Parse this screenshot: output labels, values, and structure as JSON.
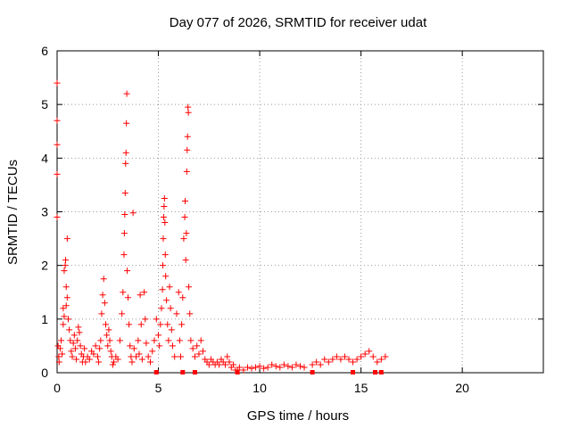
{
  "chart_data": {
    "type": "scatter",
    "title": "Day 077 of 2026, SRMTID for receiver udat",
    "xlabel": "GPS time / hours",
    "ylabel": "SRMTID / TECUs",
    "xlim": [
      0,
      24
    ],
    "ylim": [
      0,
      6
    ],
    "xticks": [
      0,
      5,
      10,
      15,
      20
    ],
    "yticks": [
      0,
      1,
      2,
      3,
      4,
      5,
      6
    ],
    "grid": true,
    "marker": "+",
    "series": [
      {
        "name": "SRMTID",
        "color": "#ff0000",
        "points": [
          [
            0.0,
            5.4
          ],
          [
            0.0,
            4.7
          ],
          [
            0.0,
            4.25
          ],
          [
            0.0,
            3.7
          ],
          [
            0.0,
            2.9
          ],
          [
            0.05,
            0.5
          ],
          [
            0.08,
            0.3
          ],
          [
            0.1,
            0.2
          ],
          [
            0.15,
            0.45
          ],
          [
            0.2,
            0.6
          ],
          [
            0.25,
            0.35
          ],
          [
            0.3,
            0.9
          ],
          [
            0.35,
            1.9
          ],
          [
            0.4,
            2.0
          ],
          [
            0.42,
            2.1
          ],
          [
            0.45,
            1.6
          ],
          [
            0.5,
            1.4
          ],
          [
            0.5,
            2.5
          ],
          [
            0.3,
            1.2
          ],
          [
            0.35,
            1.05
          ],
          [
            0.45,
            1.25
          ],
          [
            0.55,
            1.0
          ],
          [
            0.6,
            0.8
          ],
          [
            0.65,
            0.6
          ],
          [
            0.7,
            0.4
          ],
          [
            0.75,
            0.3
          ],
          [
            0.8,
            0.55
          ],
          [
            0.85,
            0.7
          ],
          [
            0.9,
            0.45
          ],
          [
            0.95,
            0.25
          ],
          [
            1.0,
            0.6
          ],
          [
            1.05,
            0.85
          ],
          [
            1.1,
            0.75
          ],
          [
            1.15,
            0.5
          ],
          [
            1.2,
            0.35
          ],
          [
            1.25,
            0.2
          ],
          [
            1.3,
            0.3
          ],
          [
            1.35,
            0.45
          ],
          [
            1.4,
            0.2
          ],
          [
            1.5,
            0.3
          ],
          [
            1.6,
            0.25
          ],
          [
            1.7,
            0.4
          ],
          [
            1.8,
            0.35
          ],
          [
            1.9,
            0.5
          ],
          [
            2.0,
            0.3
          ],
          [
            2.05,
            0.2
          ],
          [
            2.1,
            0.45
          ],
          [
            2.15,
            0.6
          ],
          [
            2.2,
            1.1
          ],
          [
            2.25,
            1.45
          ],
          [
            2.3,
            1.75
          ],
          [
            2.35,
            1.3
          ],
          [
            2.4,
            0.9
          ],
          [
            2.45,
            0.7
          ],
          [
            2.5,
            0.5
          ],
          [
            2.55,
            0.8
          ],
          [
            2.6,
            0.6
          ],
          [
            2.65,
            0.4
          ],
          [
            2.7,
            0.3
          ],
          [
            2.75,
            0.15
          ],
          [
            2.8,
            0.2
          ],
          [
            2.9,
            0.3
          ],
          [
            3.0,
            0.25
          ],
          [
            3.1,
            0.6
          ],
          [
            3.2,
            1.1
          ],
          [
            3.25,
            1.5
          ],
          [
            3.3,
            2.2
          ],
          [
            3.32,
            2.6
          ],
          [
            3.34,
            2.95
          ],
          [
            3.36,
            3.35
          ],
          [
            3.38,
            3.9
          ],
          [
            3.4,
            4.1
          ],
          [
            3.42,
            4.65
          ],
          [
            3.44,
            5.2
          ],
          [
            3.46,
            1.9
          ],
          [
            3.5,
            1.4
          ],
          [
            3.55,
            0.9
          ],
          [
            3.6,
            0.5
          ],
          [
            3.65,
            0.3
          ],
          [
            3.7,
            0.2
          ],
          [
            3.75,
            2.98
          ],
          [
            3.8,
            0.45
          ],
          [
            3.9,
            0.3
          ],
          [
            4.0,
            0.6
          ],
          [
            4.05,
            0.35
          ],
          [
            4.1,
            1.45
          ],
          [
            4.15,
            0.9
          ],
          [
            4.2,
            0.25
          ],
          [
            4.3,
            1.5
          ],
          [
            4.35,
            1.0
          ],
          [
            4.4,
            0.55
          ],
          [
            4.5,
            0.3
          ],
          [
            4.6,
            0.2
          ],
          [
            4.7,
            0.4
          ],
          [
            4.8,
            0.6
          ],
          [
            4.9,
            1.0
          ],
          [
            5.0,
            0.7
          ],
          [
            5.05,
            0.5
          ],
          [
            5.1,
            0.9
          ],
          [
            5.15,
            1.2
          ],
          [
            5.2,
            1.55
          ],
          [
            5.22,
            2.0
          ],
          [
            5.24,
            2.5
          ],
          [
            5.26,
            2.9
          ],
          [
            5.28,
            3.1
          ],
          [
            5.3,
            3.25
          ],
          [
            5.32,
            2.8
          ],
          [
            5.34,
            2.2
          ],
          [
            5.36,
            1.8
          ],
          [
            5.4,
            1.35
          ],
          [
            5.45,
            0.9
          ],
          [
            5.5,
            0.6
          ],
          [
            5.55,
            1.6
          ],
          [
            5.6,
            1.2
          ],
          [
            5.65,
            0.8
          ],
          [
            5.7,
            0.5
          ],
          [
            5.8,
            0.3
          ],
          [
            5.9,
            1.1
          ],
          [
            6.0,
            1.5
          ],
          [
            6.05,
            0.6
          ],
          [
            6.1,
            0.3
          ],
          [
            6.15,
            0.9
          ],
          [
            6.2,
            1.4
          ],
          [
            6.25,
            2.5
          ],
          [
            6.3,
            2.9
          ],
          [
            6.32,
            3.2
          ],
          [
            6.35,
            2.1
          ],
          [
            6.38,
            2.6
          ],
          [
            6.4,
            3.75
          ],
          [
            6.42,
            4.15
          ],
          [
            6.44,
            4.4
          ],
          [
            6.46,
            4.95
          ],
          [
            6.48,
            4.85
          ],
          [
            6.5,
            1.6
          ],
          [
            6.55,
            1.1
          ],
          [
            6.6,
            0.6
          ],
          [
            6.7,
            0.45
          ],
          [
            6.8,
            0.3
          ],
          [
            6.9,
            0.5
          ],
          [
            7.0,
            0.35
          ],
          [
            7.1,
            0.6
          ],
          [
            7.2,
            0.4
          ],
          [
            7.3,
            0.25
          ],
          [
            7.4,
            0.2
          ],
          [
            7.5,
            0.15
          ],
          [
            7.6,
            0.25
          ],
          [
            7.7,
            0.2
          ],
          [
            7.8,
            0.15
          ],
          [
            7.9,
            0.2
          ],
          [
            8.0,
            0.15
          ],
          [
            8.1,
            0.25
          ],
          [
            8.2,
            0.2
          ],
          [
            8.3,
            0.15
          ],
          [
            8.4,
            0.3
          ],
          [
            8.5,
            0.2
          ],
          [
            8.6,
            0.1
          ],
          [
            8.7,
            0.15
          ],
          [
            8.8,
            0.05
          ],
          [
            8.9,
            0.05
          ],
          [
            9.0,
            0.1
          ],
          [
            9.2,
            0.05
          ],
          [
            9.4,
            0.1
          ],
          [
            9.6,
            0.08
          ],
          [
            9.8,
            0.1
          ],
          [
            10.0,
            0.12
          ],
          [
            10.2,
            0.08
          ],
          [
            10.4,
            0.1
          ],
          [
            10.6,
            0.15
          ],
          [
            10.8,
            0.12
          ],
          [
            11.0,
            0.1
          ],
          [
            11.2,
            0.15
          ],
          [
            11.4,
            0.12
          ],
          [
            11.6,
            0.1
          ],
          [
            11.8,
            0.15
          ],
          [
            12.0,
            0.12
          ],
          [
            12.2,
            0.1
          ],
          [
            12.6,
            0.15
          ],
          [
            12.8,
            0.2
          ],
          [
            13.0,
            0.15
          ],
          [
            13.2,
            0.25
          ],
          [
            13.4,
            0.2
          ],
          [
            13.6,
            0.25
          ],
          [
            13.8,
            0.3
          ],
          [
            14.0,
            0.25
          ],
          [
            14.2,
            0.3
          ],
          [
            14.4,
            0.25
          ],
          [
            14.6,
            0.2
          ],
          [
            14.8,
            0.25
          ],
          [
            15.0,
            0.3
          ],
          [
            15.2,
            0.35
          ],
          [
            15.4,
            0.4
          ],
          [
            15.6,
            0.3
          ],
          [
            15.8,
            0.2
          ],
          [
            16.0,
            0.25
          ],
          [
            16.2,
            0.3
          ],
          [
            4.9,
            0.0
          ],
          [
            6.2,
            0.0
          ],
          [
            6.8,
            0.0
          ],
          [
            8.9,
            0.0
          ],
          [
            12.6,
            0.0
          ],
          [
            14.6,
            0.0
          ],
          [
            15.7,
            0.0
          ],
          [
            16.0,
            0.0
          ]
        ]
      }
    ]
  }
}
